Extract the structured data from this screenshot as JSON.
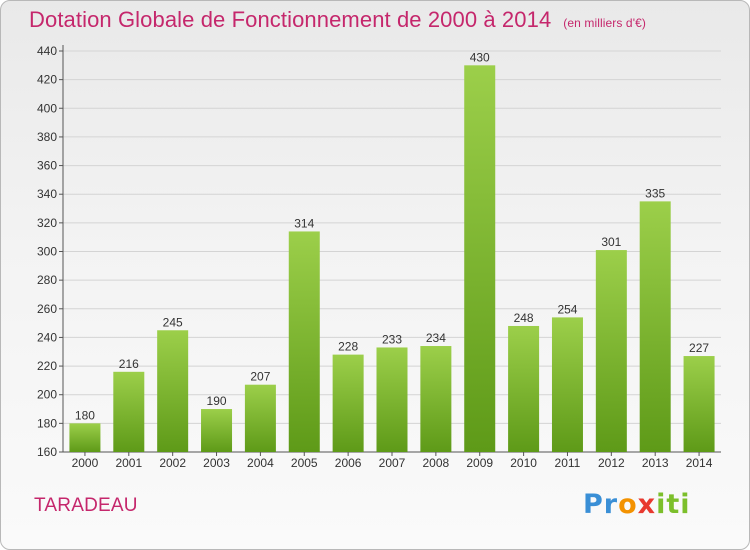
{
  "header": {
    "title": "Dotation Globale de Fonctionnement de 2000 à 2014",
    "subtitle": "(en milliers d'€)"
  },
  "footer": {
    "commune": "TARADEAU",
    "logo": [
      "Pr",
      "o",
      "x",
      "i",
      "ti"
    ]
  },
  "colors": {
    "title": "#c5276c",
    "bar_top": "#9ccf4a",
    "bar_bottom": "#5e9a18",
    "grid": "#d4d4d4"
  },
  "chart_data": {
    "type": "bar",
    "categories": [
      "2000",
      "2001",
      "2002",
      "2003",
      "2004",
      "2005",
      "2006",
      "2007",
      "2008",
      "2009",
      "2010",
      "2011",
      "2012",
      "2013",
      "2014"
    ],
    "values": [
      180,
      216,
      245,
      190,
      207,
      314,
      228,
      233,
      234,
      430,
      248,
      254,
      301,
      335,
      227
    ],
    "title": "Dotation Globale de Fonctionnement de 2000 à 2014",
    "subtitle": "(en milliers d'€)",
    "xlabel": "",
    "ylabel": "",
    "ylim": [
      160,
      440
    ],
    "yticks": [
      160,
      180,
      200,
      220,
      240,
      260,
      280,
      300,
      320,
      340,
      360,
      380,
      400,
      420,
      440
    ],
    "grid": true,
    "data_labels": true
  }
}
